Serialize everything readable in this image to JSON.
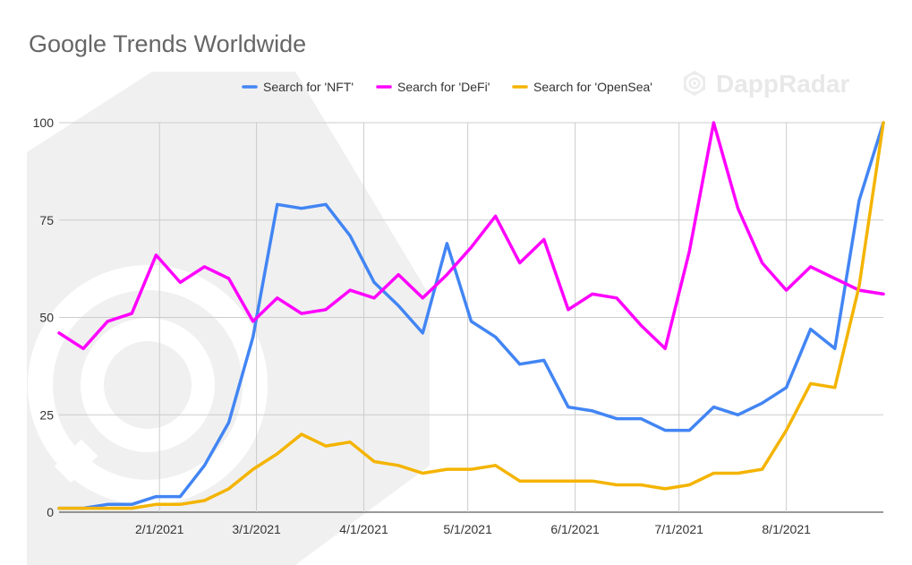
{
  "watermark": {
    "brand_text": "DappRadar",
    "brand_icon": "dappradar-logo-icon",
    "color": "#e6e6e6"
  },
  "chart_data": {
    "type": "line",
    "title": "Google Trends Worldwide",
    "xlabel": "",
    "ylabel": "",
    "ylim": [
      0,
      100
    ],
    "yticks": [
      0,
      25,
      50,
      75,
      100
    ],
    "xlim": [
      "2021-01-03",
      "2021-08-29"
    ],
    "xticks": [
      {
        "label": "2/1/2021",
        "date": "2021-02-01"
      },
      {
        "label": "3/1/2021",
        "date": "2021-03-01"
      },
      {
        "label": "4/1/2021",
        "date": "2021-04-01"
      },
      {
        "label": "5/1/2021",
        "date": "2021-05-01"
      },
      {
        "label": "6/1/2021",
        "date": "2021-06-01"
      },
      {
        "label": "7/1/2021",
        "date": "2021-07-01"
      },
      {
        "label": "8/1/2021",
        "date": "2021-08-01"
      }
    ],
    "grid": true,
    "legend_position": "top-right",
    "x": [
      "2021-01-03",
      "2021-01-10",
      "2021-01-17",
      "2021-01-24",
      "2021-01-31",
      "2021-02-07",
      "2021-02-14",
      "2021-02-21",
      "2021-02-28",
      "2021-03-07",
      "2021-03-14",
      "2021-03-21",
      "2021-03-28",
      "2021-04-04",
      "2021-04-11",
      "2021-04-18",
      "2021-04-25",
      "2021-05-02",
      "2021-05-09",
      "2021-05-16",
      "2021-05-23",
      "2021-05-30",
      "2021-06-06",
      "2021-06-13",
      "2021-06-20",
      "2021-06-27",
      "2021-07-04",
      "2021-07-11",
      "2021-07-18",
      "2021-07-25",
      "2021-08-01",
      "2021-08-08",
      "2021-08-15",
      "2021-08-22",
      "2021-08-29"
    ],
    "series": [
      {
        "name": "Search for 'NFT'",
        "color": "#4285f4",
        "values": [
          1,
          1,
          2,
          2,
          4,
          4,
          12,
          23,
          45,
          79,
          78,
          79,
          71,
          59,
          53,
          46,
          69,
          49,
          45,
          38,
          39,
          27,
          26,
          24,
          24,
          21,
          21,
          27,
          25,
          28,
          32,
          47,
          42,
          80,
          100
        ]
      },
      {
        "name": "Search for 'DeFi'",
        "color": "#ff00ff",
        "values": [
          46,
          42,
          49,
          51,
          66,
          59,
          63,
          60,
          49,
          55,
          51,
          52,
          57,
          55,
          61,
          55,
          61,
          68,
          76,
          64,
          70,
          52,
          56,
          55,
          48,
          42,
          67,
          100,
          78,
          64,
          57,
          63,
          60,
          57,
          56
        ]
      },
      {
        "name": "Search for 'OpenSea'",
        "color": "#f4b400",
        "values": [
          1,
          1,
          1,
          1,
          2,
          2,
          3,
          6,
          11,
          15,
          20,
          17,
          18,
          13,
          12,
          10,
          11,
          11,
          12,
          8,
          8,
          8,
          8,
          7,
          7,
          6,
          7,
          10,
          10,
          11,
          21,
          33,
          32,
          58,
          100
        ]
      }
    ]
  }
}
